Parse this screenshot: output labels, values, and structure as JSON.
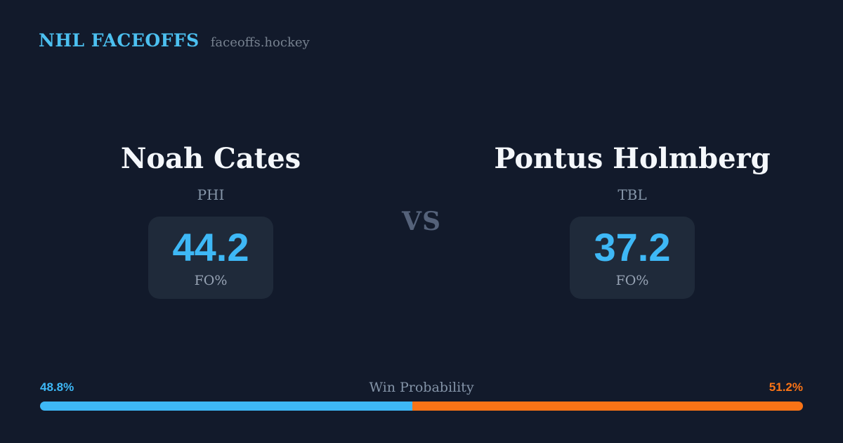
{
  "page": {
    "background": "#121a2b",
    "card_background": "#1f2a3a",
    "accent_blue": "#3eb8f6",
    "accent_orange": "#f97316",
    "brand_blue": "#4cc0f0"
  },
  "header": {
    "brand": "NHL FACEOFFS",
    "site": "faceoffs.hockey"
  },
  "matchup": {
    "vs_label": "VS",
    "players": [
      {
        "name": "Noah Cates",
        "team": "PHI",
        "stat_value": "44.2",
        "stat_label": "FO%"
      },
      {
        "name": "Pontus Holmberg",
        "team": "TBL",
        "stat_value": "37.2",
        "stat_label": "FO%"
      }
    ]
  },
  "win_probability": {
    "title": "Win Probability",
    "left_pct_label": "48.8%",
    "right_pct_label": "51.2%",
    "left_value": 48.8,
    "right_value": 51.2
  },
  "chart_data": [
    {
      "type": "bar",
      "title": "Win Probability",
      "layout": "single horizontal 100%-stacked bar, rounded pill, no axes, no grid, no legend",
      "categories": [
        "Noah Cates (PHI)",
        "Pontus Holmberg (TBL)"
      ],
      "values": [
        48.8,
        51.2
      ],
      "unit": "%",
      "colors": [
        "#3eb8f6",
        "#f97316"
      ],
      "annotations": [
        "48.8%",
        "51.2%"
      ]
    },
    {
      "type": "table",
      "title": "Faceoff percentage (FO%)",
      "categories": [
        "Noah Cates (PHI)",
        "Pontus Holmberg (TBL)"
      ],
      "values": [
        44.2,
        37.2
      ],
      "unit": "%"
    }
  ]
}
